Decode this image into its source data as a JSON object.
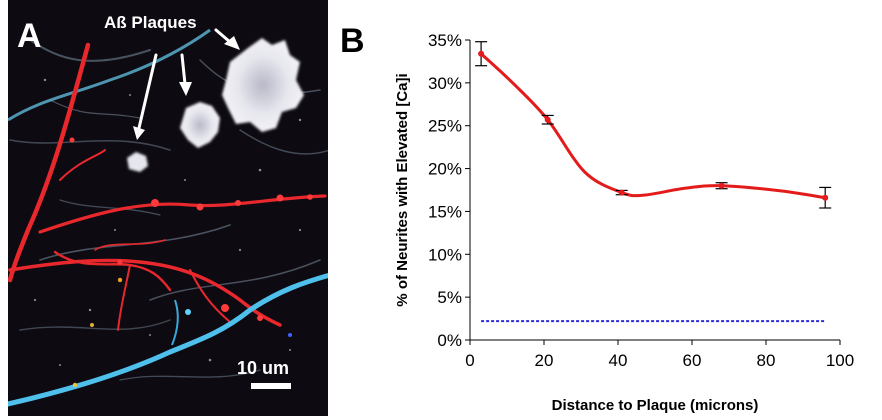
{
  "panel_a": {
    "label": "A",
    "annotation": "Aß Plaques",
    "scale_bar_label": "10 um"
  },
  "panel_b": {
    "label": "B"
  },
  "chart_data": {
    "type": "line",
    "xlabel": "Distance to Plaque (microns)",
    "ylabel": "% of Neurites with Elevated [Ca]i",
    "xlim": [
      0,
      100
    ],
    "ylim": [
      0,
      35
    ],
    "x_ticks": [
      0,
      20,
      40,
      60,
      80,
      100
    ],
    "x_tick_labels": [
      "0",
      "20",
      "40",
      "60",
      "80",
      "100"
    ],
    "y_ticks": [
      0,
      5,
      10,
      15,
      20,
      25,
      30,
      35
    ],
    "y_tick_labels": [
      "0%",
      "5%",
      "10%",
      "15%",
      "20%",
      "25%",
      "30%",
      "35%"
    ],
    "grid": false,
    "legend": "none",
    "series": [
      {
        "style": "solid",
        "color": "#e31b1b",
        "x": [
          3,
          21,
          41,
          68,
          96
        ],
        "y": [
          33.4,
          25.7,
          17.2,
          18.0,
          16.6
        ],
        "error": [
          1.4,
          0.5,
          0.25,
          0.35,
          1.2
        ],
        "curve_shape_y": [
          33.4,
          29.8,
          25.7,
          19.6,
          17.2,
          16.9,
          17.7,
          18.0,
          17.4,
          16.6
        ],
        "curve_shape_x": [
          3,
          12,
          21,
          31,
          41,
          47,
          58,
          68,
          84,
          96
        ]
      },
      {
        "style": "dashed",
        "color": "#2b2bd9",
        "x": [
          3,
          96
        ],
        "y": [
          2.2,
          2.2
        ]
      }
    ]
  }
}
